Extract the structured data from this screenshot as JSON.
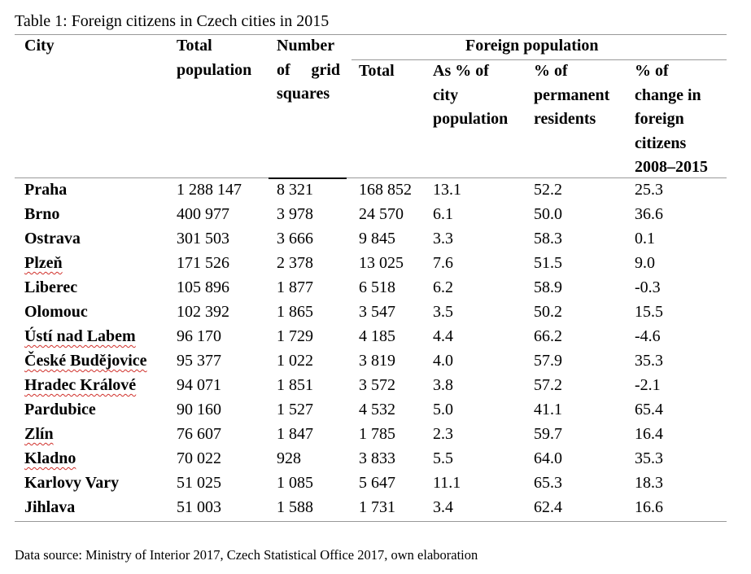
{
  "caption": "Table 1: Foreign citizens in Czech cities in 2015",
  "headers": {
    "city": "City",
    "total_population": [
      "Total",
      "population"
    ],
    "grid_squares": [
      [
        "Number"
      ],
      [
        "of",
        "grid"
      ],
      [
        "squares"
      ]
    ],
    "foreign_population": "Foreign population",
    "foreign_total": "Total",
    "as_pct_city": [
      "As % of",
      "city",
      "population"
    ],
    "pct_permanent": [
      "% of",
      "permanent",
      "residents"
    ],
    "pct_change": [
      "% of",
      "change in",
      "foreign",
      "citizens",
      "2008–2015"
    ]
  },
  "rows": [
    {
      "city": "Praha",
      "total_population": "1 288 147",
      "grid_squares": "8 321",
      "foreign_total": "168 852",
      "as_pct_city": "13.1",
      "pct_permanent": "52.2",
      "pct_change": "25.3",
      "wavy": false
    },
    {
      "city": "Brno",
      "total_population": "400 977",
      "grid_squares": "3 978",
      "foreign_total": "24 570",
      "as_pct_city": "6.1",
      "pct_permanent": "50.0",
      "pct_change": "36.6",
      "wavy": false
    },
    {
      "city": "Ostrava",
      "total_population": "301 503",
      "grid_squares": "3 666",
      "foreign_total": "9 845",
      "as_pct_city": "3.3",
      "pct_permanent": "58.3",
      "pct_change": "0.1",
      "wavy": false
    },
    {
      "city": "Plzeň",
      "total_population": "171 526",
      "grid_squares": "2 378",
      "foreign_total": "13 025",
      "as_pct_city": "7.6",
      "pct_permanent": "51.5",
      "pct_change": "9.0",
      "wavy": true
    },
    {
      "city": "Liberec",
      "total_population": "105 896",
      "grid_squares": "1 877",
      "foreign_total": "6 518",
      "as_pct_city": "6.2",
      "pct_permanent": "58.9",
      "pct_change": "-0.3",
      "wavy": false
    },
    {
      "city": "Olomouc",
      "total_population": "102 392",
      "grid_squares": "1 865",
      "foreign_total": "3 547",
      "as_pct_city": "3.5",
      "pct_permanent": "50.2",
      "pct_change": "15.5",
      "wavy": false
    },
    {
      "city": "Ústí nad Labem",
      "total_population": "96 170",
      "grid_squares": "1 729",
      "foreign_total": "4 185",
      "as_pct_city": "4.4",
      "pct_permanent": "66.2",
      "pct_change": "-4.6",
      "wavy": true
    },
    {
      "city": "České Budějovice",
      "total_population": "95 377",
      "grid_squares": "1 022",
      "foreign_total": "3 819",
      "as_pct_city": "4.0",
      "pct_permanent": "57.9",
      "pct_change": "35.3",
      "wavy": true
    },
    {
      "city": "Hradec Králové",
      "total_population": "94 071",
      "grid_squares": "1 851",
      "foreign_total": "3 572",
      "as_pct_city": "3.8",
      "pct_permanent": "57.2",
      "pct_change": "-2.1",
      "wavy": true
    },
    {
      "city": "Pardubice",
      "total_population": "90 160",
      "grid_squares": "1 527",
      "foreign_total": "4 532",
      "as_pct_city": "5.0",
      "pct_permanent": "41.1",
      "pct_change": "65.4",
      "wavy": false
    },
    {
      "city": "Zlín",
      "total_population": "76 607",
      "grid_squares": "1 847",
      "foreign_total": "1 785",
      "as_pct_city": "2.3",
      "pct_permanent": "59.7",
      "pct_change": "16.4",
      "wavy": true
    },
    {
      "city": "Kladno",
      "total_population": "70 022",
      "grid_squares": "928",
      "foreign_total": "3 833",
      "as_pct_city": "5.5",
      "pct_permanent": "64.0",
      "pct_change": "35.3",
      "wavy": true
    },
    {
      "city": "Karlovy Vary",
      "total_population": "51 025",
      "grid_squares": "1 085",
      "foreign_total": "5 647",
      "as_pct_city": "11.1",
      "pct_permanent": "65.3",
      "pct_change": "18.3",
      "wavy": false
    },
    {
      "city": "Jihlava",
      "total_population": "51 003",
      "grid_squares": "1 588",
      "foreign_total": "1 731",
      "as_pct_city": "3.4",
      "pct_permanent": "62.4",
      "pct_change": "16.6",
      "wavy": false
    }
  ],
  "source": "Data source: Ministry of Interior 2017, Czech Statistical Office 2017, own elaboration"
}
